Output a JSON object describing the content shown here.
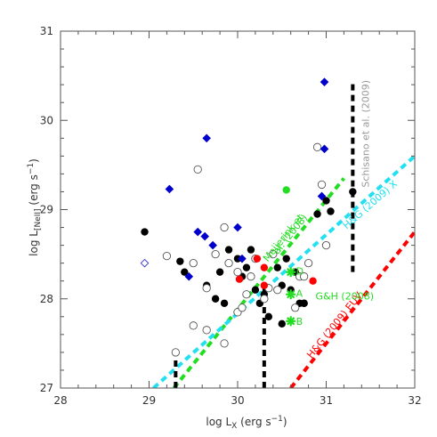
{
  "chart_data": {
    "type": "scatter",
    "xlabel": "log L",
    "xlabel_sub": "X",
    "xlabel_unit": " (erg s",
    "xlabel_sup": "−1",
    "xlabel_end": ")",
    "ylabel": "log L",
    "ylabel_sub": "[NeII]",
    "ylabel_unit": " (erg s",
    "ylabel_sup": "−1",
    "ylabel_end": ")",
    "xlim": [
      28,
      32
    ],
    "ylim": [
      27,
      31
    ],
    "xticks": [
      28,
      29,
      30,
      31,
      32
    ],
    "yticks": [
      27,
      28,
      29,
      30,
      31
    ],
    "xtick_labels": [
      "28",
      "29",
      "30",
      "31",
      "32"
    ],
    "ytick_labels": [
      "27",
      "28",
      "29",
      "30",
      "31"
    ],
    "grid": false,
    "colors": {
      "black": "#000000",
      "red": "#ff0000",
      "green": "#22dd22",
      "blue": "#0000cc",
      "cyan": "#22e0f0",
      "gray": "#999999",
      "hollow_blue": "#3333cc"
    },
    "series": [
      {
        "marker": "filled-circle",
        "color": "black",
        "points": [
          [
            28.95,
            28.75
          ],
          [
            29.35,
            28.42
          ],
          [
            29.4,
            28.3
          ],
          [
            29.65,
            28.15
          ],
          [
            29.8,
            28.3
          ],
          [
            29.75,
            28.0
          ],
          [
            29.85,
            27.95
          ],
          [
            29.9,
            28.55
          ],
          [
            30.0,
            28.45
          ],
          [
            30.05,
            28.25
          ],
          [
            30.1,
            28.35
          ],
          [
            30.15,
            28.55
          ],
          [
            30.2,
            28.1
          ],
          [
            30.25,
            27.95
          ],
          [
            30.3,
            28.05
          ],
          [
            30.35,
            27.8
          ],
          [
            30.45,
            28.35
          ],
          [
            30.5,
            28.15
          ],
          [
            30.55,
            28.45
          ],
          [
            30.6,
            28.1
          ],
          [
            30.65,
            28.3
          ],
          [
            30.7,
            27.95
          ],
          [
            30.75,
            27.95
          ],
          [
            30.5,
            27.72
          ],
          [
            30.9,
            28.95
          ],
          [
            31.0,
            29.1
          ],
          [
            31.05,
            28.98
          ],
          [
            31.3,
            29.2
          ],
          [
            30.75,
            27.95
          ]
        ]
      },
      {
        "marker": "hollow-circle",
        "color": "black",
        "points": [
          [
            29.2,
            28.48
          ],
          [
            29.55,
            29.45
          ],
          [
            29.5,
            28.4
          ],
          [
            29.65,
            28.12
          ],
          [
            29.75,
            28.5
          ],
          [
            29.85,
            28.8
          ],
          [
            29.9,
            28.4
          ],
          [
            30.0,
            28.3
          ],
          [
            30.0,
            27.85
          ],
          [
            30.05,
            27.9
          ],
          [
            30.1,
            28.05
          ],
          [
            30.15,
            28.25
          ],
          [
            30.2,
            28.45
          ],
          [
            30.3,
            28.0
          ],
          [
            30.35,
            28.12
          ],
          [
            30.4,
            28.5
          ],
          [
            30.45,
            28.1
          ],
          [
            30.65,
            27.9
          ],
          [
            30.7,
            28.25
          ],
          [
            30.75,
            28.25
          ],
          [
            30.9,
            29.7
          ],
          [
            30.95,
            29.28
          ],
          [
            31.0,
            28.6
          ],
          [
            30.8,
            28.4
          ],
          [
            29.3,
            27.4
          ],
          [
            29.5,
            27.7
          ],
          [
            29.65,
            27.65
          ],
          [
            29.85,
            27.5
          ]
        ]
      },
      {
        "marker": "filled-diamond",
        "color": "blue",
        "points": [
          [
            29.23,
            29.23
          ],
          [
            29.45,
            28.25
          ],
          [
            29.55,
            28.75
          ],
          [
            29.63,
            28.7
          ],
          [
            29.65,
            29.8
          ],
          [
            29.72,
            28.6
          ],
          [
            30.0,
            28.8
          ],
          [
            30.05,
            28.45
          ],
          [
            30.98,
            30.43
          ],
          [
            30.98,
            29.68
          ],
          [
            30.95,
            29.15
          ]
        ]
      },
      {
        "marker": "hollow-diamond",
        "color": "hollow_blue",
        "points": [
          [
            28.95,
            28.4
          ]
        ]
      },
      {
        "marker": "filled-circle",
        "color": "red",
        "points": [
          [
            30.02,
            28.22
          ],
          [
            30.22,
            28.45
          ],
          [
            30.3,
            28.35
          ],
          [
            30.85,
            28.2
          ],
          [
            30.3,
            28.15
          ]
        ]
      },
      {
        "marker": "filled-circle",
        "color": "green",
        "points": [
          [
            30.55,
            29.22
          ]
        ]
      },
      {
        "marker": "asterisk",
        "color": "green",
        "points": [
          [
            30.6,
            28.3
          ],
          [
            30.6,
            28.05
          ],
          [
            30.6,
            27.75
          ]
        ]
      }
    ],
    "lines": [
      {
        "color": "green",
        "style": "dashed-thick",
        "from": [
          29.28,
          27.0
        ],
        "to": [
          31.2,
          29.35
        ]
      },
      {
        "color": "cyan",
        "style": "dashed-thick",
        "from": [
          29.05,
          27.0
        ],
        "to": [
          32.0,
          29.6
        ]
      },
      {
        "color": "red",
        "style": "dashed-thick",
        "from": [
          30.6,
          27.0
        ],
        "to": [
          32.0,
          28.75
        ]
      },
      {
        "color": "black",
        "style": "dashed-thick",
        "from": [
          29.3,
          27.0
        ],
        "to": [
          29.3,
          27.42
        ]
      },
      {
        "color": "black",
        "style": "dashed-thick",
        "from": [
          30.3,
          27.0
        ],
        "to": [
          30.3,
          28.12
        ]
      },
      {
        "color": "black",
        "style": "dashed-thick",
        "from": [
          31.3,
          28.3
        ],
        "to": [
          31.3,
          30.45
        ]
      }
    ],
    "annotations": [
      {
        "text": "Schisano et al. (2009)",
        "color": "gray",
        "at": [
          31.45,
          29.85
        ],
        "rotate": -90
      },
      {
        "text": "Meijerink et",
        "color": "green",
        "at": [
          30.52,
          28.68
        ],
        "rotate": -51
      },
      {
        "text": "al. (2008)",
        "color": "green",
        "at": [
          30.6,
          28.72
        ],
        "rotate": -51
      },
      {
        "text": "H&G (2009) X",
        "color": "cyan",
        "at": [
          31.5,
          29.05
        ],
        "rotate": -41
      },
      {
        "text": "H&G (2009) EUV",
        "color": "red",
        "at": [
          31.1,
          27.7
        ],
        "rotate": -51
      },
      {
        "text": "G&H (2008)",
        "color": "green",
        "at": [
          30.88,
          28.02
        ],
        "rotate": 0
      },
      {
        "text": "D",
        "color": "green",
        "at": [
          30.66,
          28.3
        ],
        "rotate": 0
      },
      {
        "text": "A",
        "color": "green",
        "at": [
          30.66,
          28.05
        ],
        "rotate": 0
      },
      {
        "text": "B",
        "color": "green",
        "at": [
          30.66,
          27.74
        ],
        "rotate": 0
      }
    ]
  }
}
